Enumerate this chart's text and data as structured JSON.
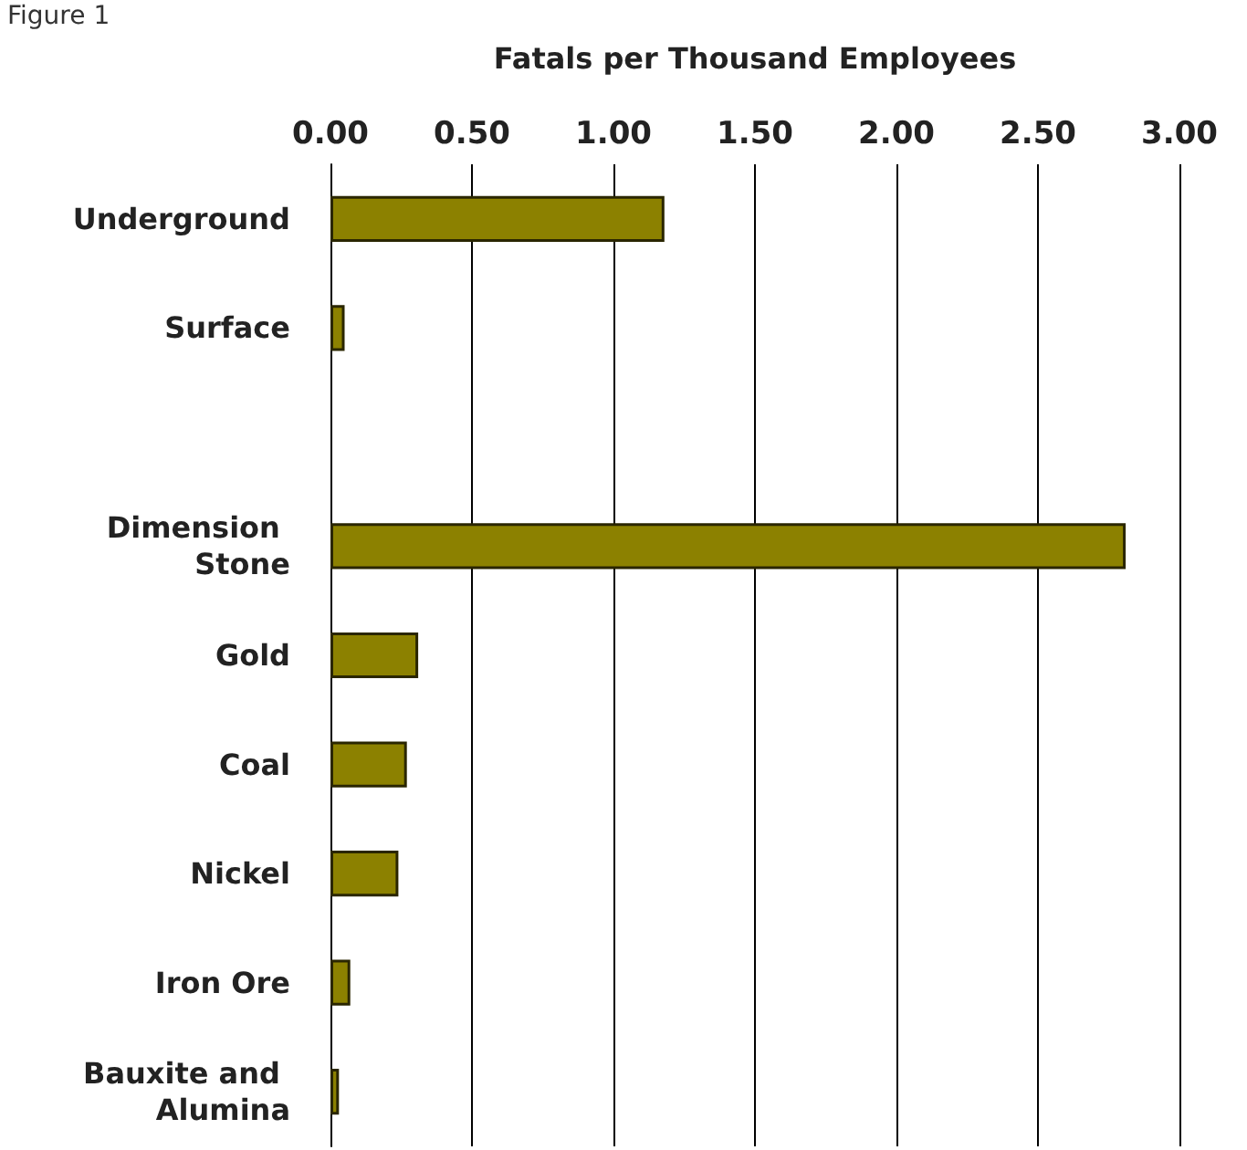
{
  "chart_data": {
    "type": "bar",
    "orientation": "horizontal",
    "xlabel": "Fatals per Thousand Employees",
    "annotations": [
      "Figure 1"
    ],
    "categories": [
      "Underground",
      "Surface",
      null,
      "Dimension Stone",
      "Gold",
      "Coal",
      "Nickel",
      "Iron Ore",
      "Bauxite and Alumina"
    ],
    "values": [
      1.18,
      0.05,
      null,
      2.81,
      0.31,
      0.27,
      0.24,
      0.07,
      0.03
    ],
    "color": "#8c8100",
    "xlim": [
      0,
      3
    ],
    "xticks": [
      {
        "value": 0,
        "label": "0.00"
      },
      {
        "value": 0.5,
        "label": "0.50"
      },
      {
        "value": 1,
        "label": "1.00"
      },
      {
        "value": 1.5,
        "label": "1.50"
      },
      {
        "value": 2,
        "label": "2.00"
      },
      {
        "value": 2.5,
        "label": "2.50"
      },
      {
        "value": 3,
        "label": "3.00"
      }
    ],
    "grid": "x"
  }
}
